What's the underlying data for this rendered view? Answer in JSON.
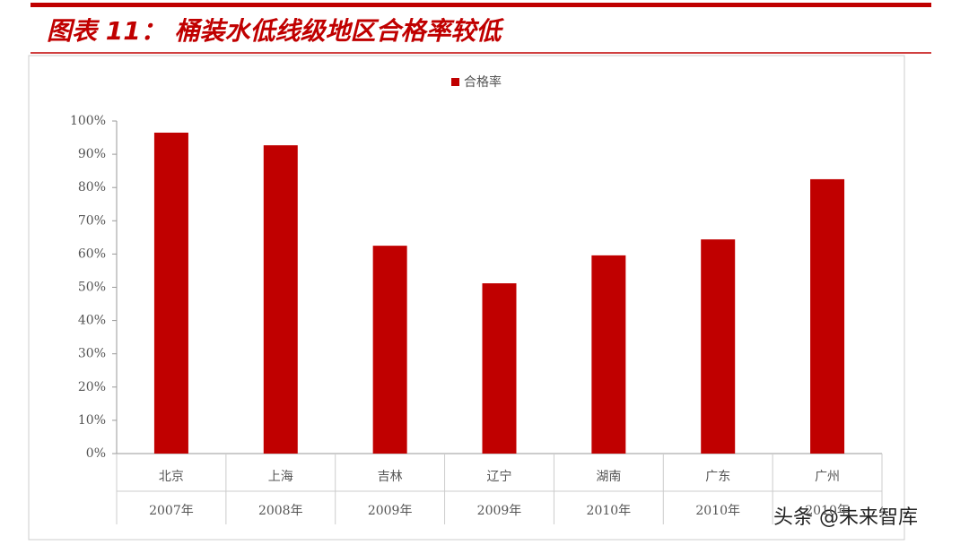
{
  "chart_data": {
    "type": "bar",
    "title": "图表 11：  桶装水低线级地区合格率较低",
    "categories": [
      [
        "北京",
        "2007年"
      ],
      [
        "上海",
        "2008年"
      ],
      [
        "吉林",
        "2009年"
      ],
      [
        "辽宁",
        "2009年"
      ],
      [
        "湖南",
        "2010年"
      ],
      [
        "广东",
        "2010年"
      ],
      [
        "广州",
        "2010年"
      ]
    ],
    "series": [
      {
        "name": "合格率",
        "color": "#c00000",
        "values": [
          96.5,
          92.7,
          62.5,
          51.2,
          59.6,
          64.4,
          82.5
        ]
      }
    ],
    "ylim": [
      0,
      100
    ],
    "yticks": [
      {
        "value": 0,
        "label": "0%"
      },
      {
        "value": 10,
        "label": "10%"
      },
      {
        "value": 20,
        "label": "20%"
      },
      {
        "value": 30,
        "label": "30%"
      },
      {
        "value": 40,
        "label": "40%"
      },
      {
        "value": 50,
        "label": "50%"
      },
      {
        "value": 60,
        "label": "60%"
      },
      {
        "value": 70,
        "label": "70%"
      },
      {
        "value": 80,
        "label": "80%"
      },
      {
        "value": 90,
        "label": "90%"
      },
      {
        "value": 100,
        "label": "100%"
      }
    ],
    "legend": "top",
    "watermark": "头条 @未来智库"
  }
}
